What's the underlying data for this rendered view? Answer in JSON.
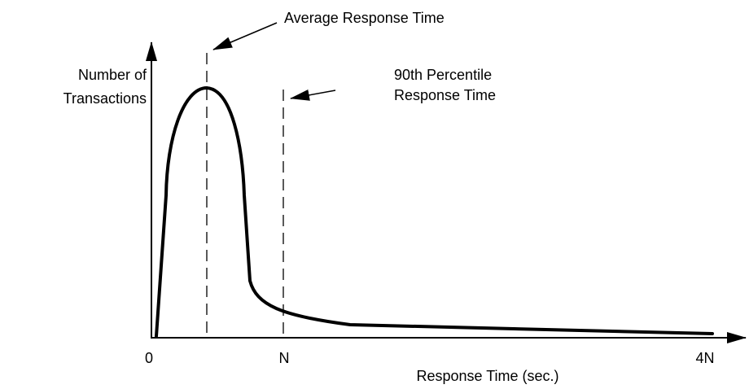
{
  "diagram": {
    "y_axis_label": [
      "Number of",
      "Transactions"
    ],
    "x_axis_label": "Response Time (sec.)",
    "x_labels": [
      "0",
      "N",
      "4N"
    ],
    "annotations": [
      {
        "lines": [
          "Average Response Time"
        ]
      },
      {
        "lines": [
          "90th Percentile",
          "Response Time"
        ]
      }
    ]
  }
}
